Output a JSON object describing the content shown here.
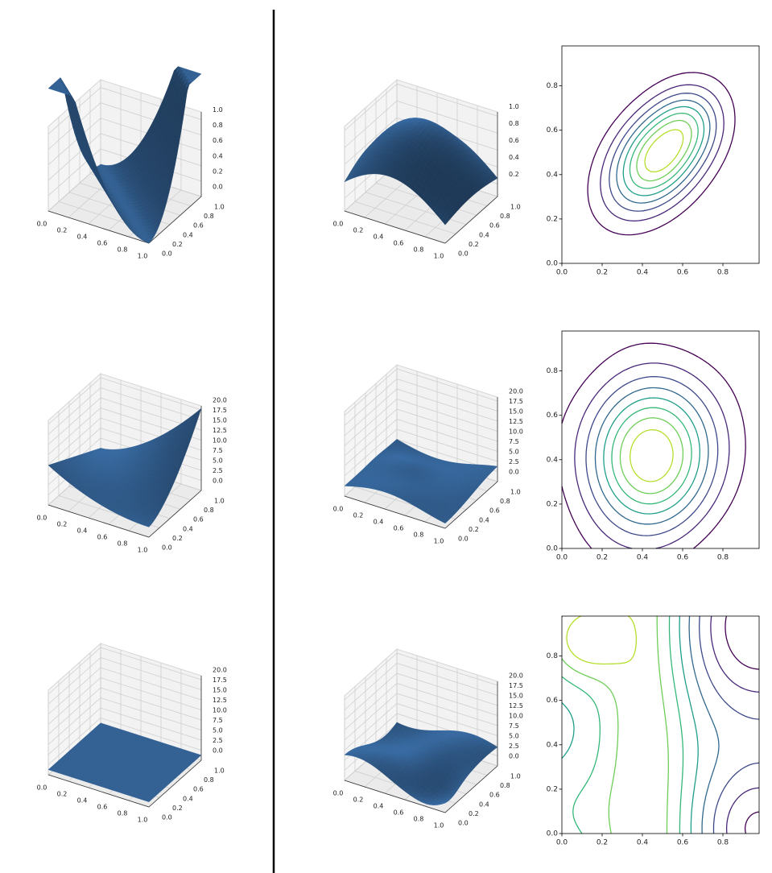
{
  "chart_data": [
    {
      "type": "surface3d",
      "xlim": [
        0,
        1
      ],
      "ylim": [
        0,
        1
      ],
      "zlim": [
        0,
        1.1
      ],
      "xticks": [
        {
          "value": 0,
          "label": "0.0"
        },
        0.2,
        0.4,
        0.6,
        0.8,
        {
          "value": 1,
          "label": "1.0"
        }
      ],
      "yticks": [
        {
          "value": 0,
          "label": "0.0"
        },
        0.2,
        0.4,
        0.6,
        0.8,
        {
          "value": 1,
          "label": "1.0"
        }
      ],
      "zticks": [
        {
          "value": 0,
          "label": "0.0"
        },
        0.2,
        0.4,
        0.6,
        0.8,
        {
          "value": 1,
          "label": "1.0"
        }
      ]
    },
    {
      "type": "surface3d",
      "xlim": [
        0,
        1
      ],
      "ylim": [
        0,
        1
      ],
      "zlim": [
        0.05,
        1.05
      ],
      "xticks": [
        {
          "value": 0,
          "label": "0.0"
        },
        0.2,
        0.4,
        0.6,
        0.8,
        {
          "value": 1,
          "label": "1.0"
        }
      ],
      "yticks": [
        {
          "value": 0,
          "label": "0.0"
        },
        0.2,
        0.4,
        0.6,
        0.8,
        {
          "value": 1,
          "label": "1.0"
        }
      ],
      "zticks": [
        0.2,
        0.4,
        0.6,
        0.8,
        {
          "value": 1,
          "label": "1.0"
        }
      ]
    },
    {
      "type": "contour",
      "xlim": [
        0,
        0.98
      ],
      "ylim": [
        0,
        0.98
      ],
      "xticks": [
        {
          "value": 0,
          "label": "0.0"
        },
        0.2,
        0.4,
        0.6,
        0.8
      ],
      "yticks": [
        {
          "value": 0,
          "label": "0.0"
        },
        0.2,
        0.4,
        0.6,
        0.8
      ]
    },
    {
      "type": "surface3d",
      "xlim": [
        0,
        1
      ],
      "ylim": [
        0,
        1
      ],
      "zlim": [
        0,
        21
      ],
      "xticks": [
        {
          "value": 0,
          "label": "0.0"
        },
        0.2,
        0.4,
        0.6,
        0.8,
        {
          "value": 1,
          "label": "1.0"
        }
      ],
      "yticks": [
        {
          "value": 0,
          "label": "0.0"
        },
        0.2,
        0.4,
        0.6,
        0.8,
        {
          "value": 1,
          "label": "1.0"
        }
      ],
      "zticks": [
        {
          "value": 0,
          "label": "0.0"
        },
        2.5,
        {
          "value": 5,
          "label": "5.0"
        },
        7.5,
        {
          "value": 10,
          "label": "10.0"
        },
        12.5,
        {
          "value": 15,
          "label": "15.0"
        },
        17.5,
        {
          "value": 20,
          "label": "20.0"
        }
      ]
    },
    {
      "type": "surface3d",
      "xlim": [
        0,
        1
      ],
      "ylim": [
        0,
        1
      ],
      "zlim": [
        0,
        21
      ],
      "xticks": [
        {
          "value": 0,
          "label": "0.0"
        },
        0.2,
        0.4,
        0.6,
        0.8,
        {
          "value": 1,
          "label": "1.0"
        }
      ],
      "yticks": [
        {
          "value": 0,
          "label": "0.0"
        },
        0.2,
        0.4,
        0.6,
        0.8,
        {
          "value": 1,
          "label": "1.0"
        }
      ],
      "zticks": [
        {
          "value": 0,
          "label": "0.0"
        },
        2.5,
        {
          "value": 5,
          "label": "5.0"
        },
        7.5,
        {
          "value": 10,
          "label": "10.0"
        },
        12.5,
        {
          "value": 15,
          "label": "15.0"
        },
        17.5,
        {
          "value": 20,
          "label": "20.0"
        }
      ]
    },
    {
      "type": "contour",
      "xlim": [
        0,
        0.98
      ],
      "ylim": [
        0,
        0.98
      ],
      "xticks": [
        {
          "value": 0,
          "label": "0.0"
        },
        0.2,
        0.4,
        0.6,
        0.8
      ],
      "yticks": [
        {
          "value": 0,
          "label": "0.0"
        },
        0.2,
        0.4,
        0.6,
        0.8
      ]
    },
    {
      "type": "surface3d",
      "xlim": [
        0,
        1
      ],
      "ylim": [
        0,
        1
      ],
      "zlim": [
        0,
        21
      ],
      "xticks": [
        {
          "value": 0,
          "label": "0.0"
        },
        0.2,
        0.4,
        0.6,
        0.8,
        {
          "value": 1,
          "label": "1.0"
        }
      ],
      "yticks": [
        {
          "value": 0,
          "label": "0.0"
        },
        0.2,
        0.4,
        0.6,
        0.8,
        {
          "value": 1,
          "label": "1.0"
        }
      ],
      "zticks": [
        {
          "value": 0,
          "label": "0.0"
        },
        2.5,
        {
          "value": 5,
          "label": "5.0"
        },
        7.5,
        {
          "value": 10,
          "label": "10.0"
        },
        12.5,
        {
          "value": 15,
          "label": "15.0"
        },
        17.5,
        {
          "value": 20,
          "label": "20.0"
        }
      ]
    },
    {
      "type": "surface3d",
      "xlim": [
        0,
        1
      ],
      "ylim": [
        0,
        1
      ],
      "zlim": [
        0,
        21
      ],
      "xticks": [
        {
          "value": 0,
          "label": "0.0"
        },
        0.2,
        0.4,
        0.6,
        0.8,
        {
          "value": 1,
          "label": "1.0"
        }
      ],
      "yticks": [
        {
          "value": 0,
          "label": "0.0"
        },
        0.2,
        0.4,
        0.6,
        0.8,
        {
          "value": 1,
          "label": "1.0"
        }
      ],
      "zticks": [
        {
          "value": 0,
          "label": "0.0"
        },
        2.5,
        {
          "value": 5,
          "label": "5.0"
        },
        7.5,
        {
          "value": 10,
          "label": "10.0"
        },
        12.5,
        {
          "value": 15,
          "label": "15.0"
        },
        17.5,
        {
          "value": 20,
          "label": "20.0"
        }
      ]
    },
    {
      "type": "contour",
      "xlim": [
        0,
        0.98
      ],
      "ylim": [
        0,
        0.98
      ],
      "xticks": [
        {
          "value": 0,
          "label": "0.0"
        },
        0.2,
        0.4,
        0.6,
        0.8
      ],
      "yticks": [
        {
          "value": 0,
          "label": "0.0"
        },
        0.2,
        0.4,
        0.6,
        0.8
      ]
    }
  ]
}
